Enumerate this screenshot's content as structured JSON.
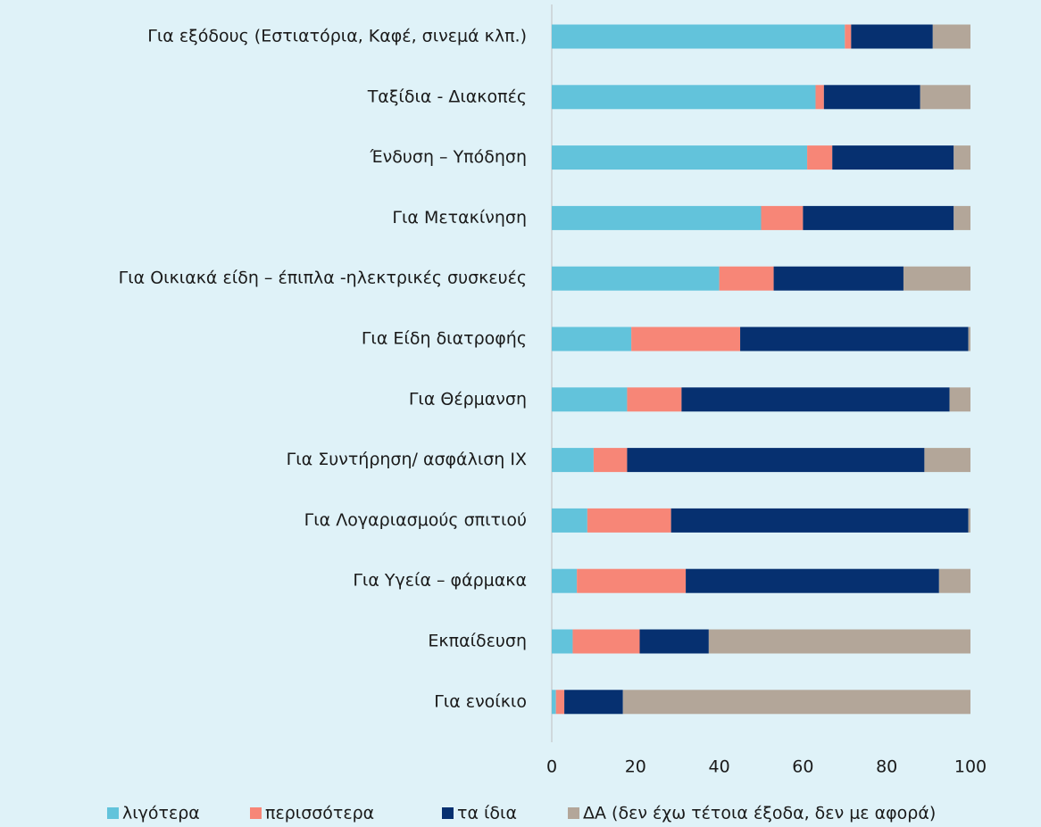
{
  "chart_data": {
    "type": "stacked_bar_horizontal",
    "categories": [
      "Για εξόδους (Εστιατόρια, Καφέ, σινεμά κλπ.)",
      "Ταξίδια - Διακοπές",
      "Ένδυση – Υπόδηση",
      "Για Μετακίνηση",
      "Για Οικιακά είδη – έπιπλα -ηλεκτρικές συσκευές",
      "Για Είδη διατροφής",
      "Για Θέρμανση",
      "Για Συντήρηση/ ασφάλιση ΙΧ",
      "Για Λογαριασμούς σπιτιού",
      "Για Υγεία – φάρμακα",
      "Εκπαίδευση",
      "Για ενοίκιο"
    ],
    "series": [
      {
        "name": "λιγότερα",
        "color": "#62c3db",
        "values": [
          70,
          63,
          61,
          50,
          40,
          19,
          18,
          10,
          8.5,
          6,
          5,
          1
        ]
      },
      {
        "name": "περισσότερα",
        "color": "#f78677",
        "values": [
          1.5,
          2,
          6,
          10,
          13,
          26,
          13,
          8,
          20,
          26,
          16,
          2
        ]
      },
      {
        "name": "τα ίδια",
        "color": "#063070",
        "values": [
          19.5,
          23,
          29,
          36,
          31,
          54.5,
          64,
          71,
          71,
          60.5,
          16.5,
          14
        ]
      },
      {
        "name": "ΔΑ (δεν έχω τέτοια έξοδα, δεν με αφορά)",
        "color": "#b3a699",
        "values": [
          9,
          12,
          4,
          4,
          16,
          0.5,
          5,
          11,
          0.5,
          7.5,
          62.5,
          83
        ]
      }
    ],
    "xlim": [
      0,
      100
    ],
    "xticks": [
      0,
      20,
      40,
      60,
      80,
      100
    ],
    "legend": "bottom"
  }
}
